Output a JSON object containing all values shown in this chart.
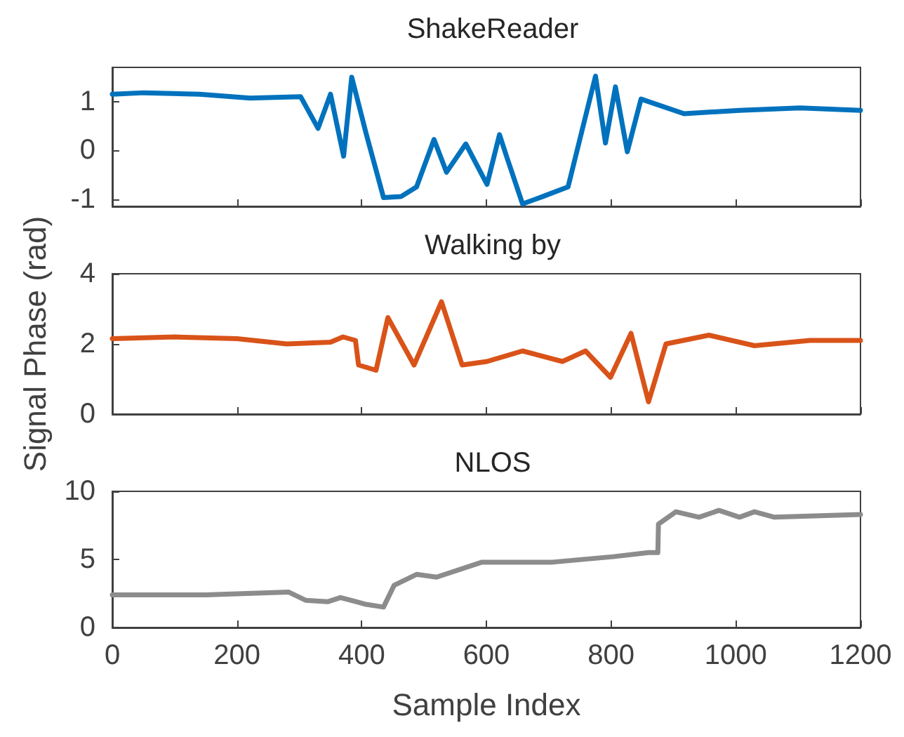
{
  "chart_data": [
    {
      "type": "line",
      "title": "ShakeReader",
      "xlim": [
        0,
        1200
      ],
      "xticks": [
        0,
        200,
        400,
        600,
        800,
        1000,
        1200
      ],
      "ylim": [
        -1.15,
        1.7
      ],
      "yticks": [
        -1,
        0,
        1
      ],
      "tick_labels": "y",
      "grid": false,
      "marker": "none",
      "series": [
        {
          "color": "#0072bd",
          "x": [
            0,
            51,
            140,
            221,
            302,
            330,
            350,
            371,
            384,
            407,
            435,
            463,
            488,
            516,
            536,
            567,
            601,
            621,
            633,
            658,
            690,
            731,
            775,
            791,
            807,
            826,
            848,
            917,
            1006,
            1103,
            1200
          ],
          "values": [
            1.15,
            1.18,
            1.15,
            1.07,
            1.1,
            0.45,
            1.15,
            -0.12,
            1.5,
            0.35,
            -0.97,
            -0.95,
            -0.75,
            0.22,
            -0.45,
            0.13,
            -0.7,
            0.32,
            -0.15,
            -1.1,
            -0.95,
            -0.75,
            1.52,
            0.15,
            1.3,
            -0.03,
            1.05,
            0.75,
            0.82,
            0.87,
            0.82
          ]
        }
      ]
    },
    {
      "type": "line",
      "title": "Walking by",
      "ylabel": "Signal Phase (rad)",
      "xlim": [
        0,
        1200
      ],
      "xticks": [
        0,
        200,
        400,
        600,
        800,
        1000,
        1200
      ],
      "ylim": [
        0,
        4
      ],
      "yticks": [
        0,
        2,
        4
      ],
      "tick_labels": "y",
      "grid": false,
      "marker": "none",
      "series": [
        {
          "color": "#d95319",
          "x": [
            0,
            100,
            200,
            280,
            350,
            370,
            390,
            395,
            423,
            442,
            484,
            528,
            561,
            601,
            658,
            722,
            759,
            799,
            832,
            860,
            888,
            957,
            1030,
            1119,
            1200
          ],
          "values": [
            2.15,
            2.2,
            2.15,
            2.0,
            2.05,
            2.2,
            2.1,
            1.4,
            1.25,
            2.75,
            1.4,
            3.2,
            1.4,
            1.5,
            1.8,
            1.5,
            1.8,
            1.05,
            2.3,
            0.35,
            2.0,
            2.25,
            1.95,
            2.1,
            2.1
          ]
        }
      ]
    },
    {
      "type": "line",
      "title": "NLOS",
      "xlabel": "Sample Index",
      "xlim": [
        0,
        1200
      ],
      "xticks": [
        0,
        200,
        400,
        600,
        800,
        1000,
        1200
      ],
      "ylim": [
        0,
        10
      ],
      "yticks": [
        0,
        5,
        10
      ],
      "grid": false,
      "marker": "none",
      "series": [
        {
          "color": "#8c8c8c",
          "x": [
            0,
            150,
            283,
            310,
            346,
            366,
            407,
            435,
            452,
            488,
            520,
            593,
            706,
            803,
            860,
            875,
            876,
            904,
            941,
            973,
            1006,
            1030,
            1062,
            1200
          ],
          "values": [
            2.4,
            2.4,
            2.6,
            2.0,
            1.9,
            2.2,
            1.7,
            1.5,
            3.1,
            3.9,
            3.7,
            4.8,
            4.8,
            5.2,
            5.5,
            5.5,
            7.6,
            8.5,
            8.1,
            8.6,
            8.1,
            8.5,
            8.1,
            8.3
          ]
        }
      ]
    }
  ]
}
